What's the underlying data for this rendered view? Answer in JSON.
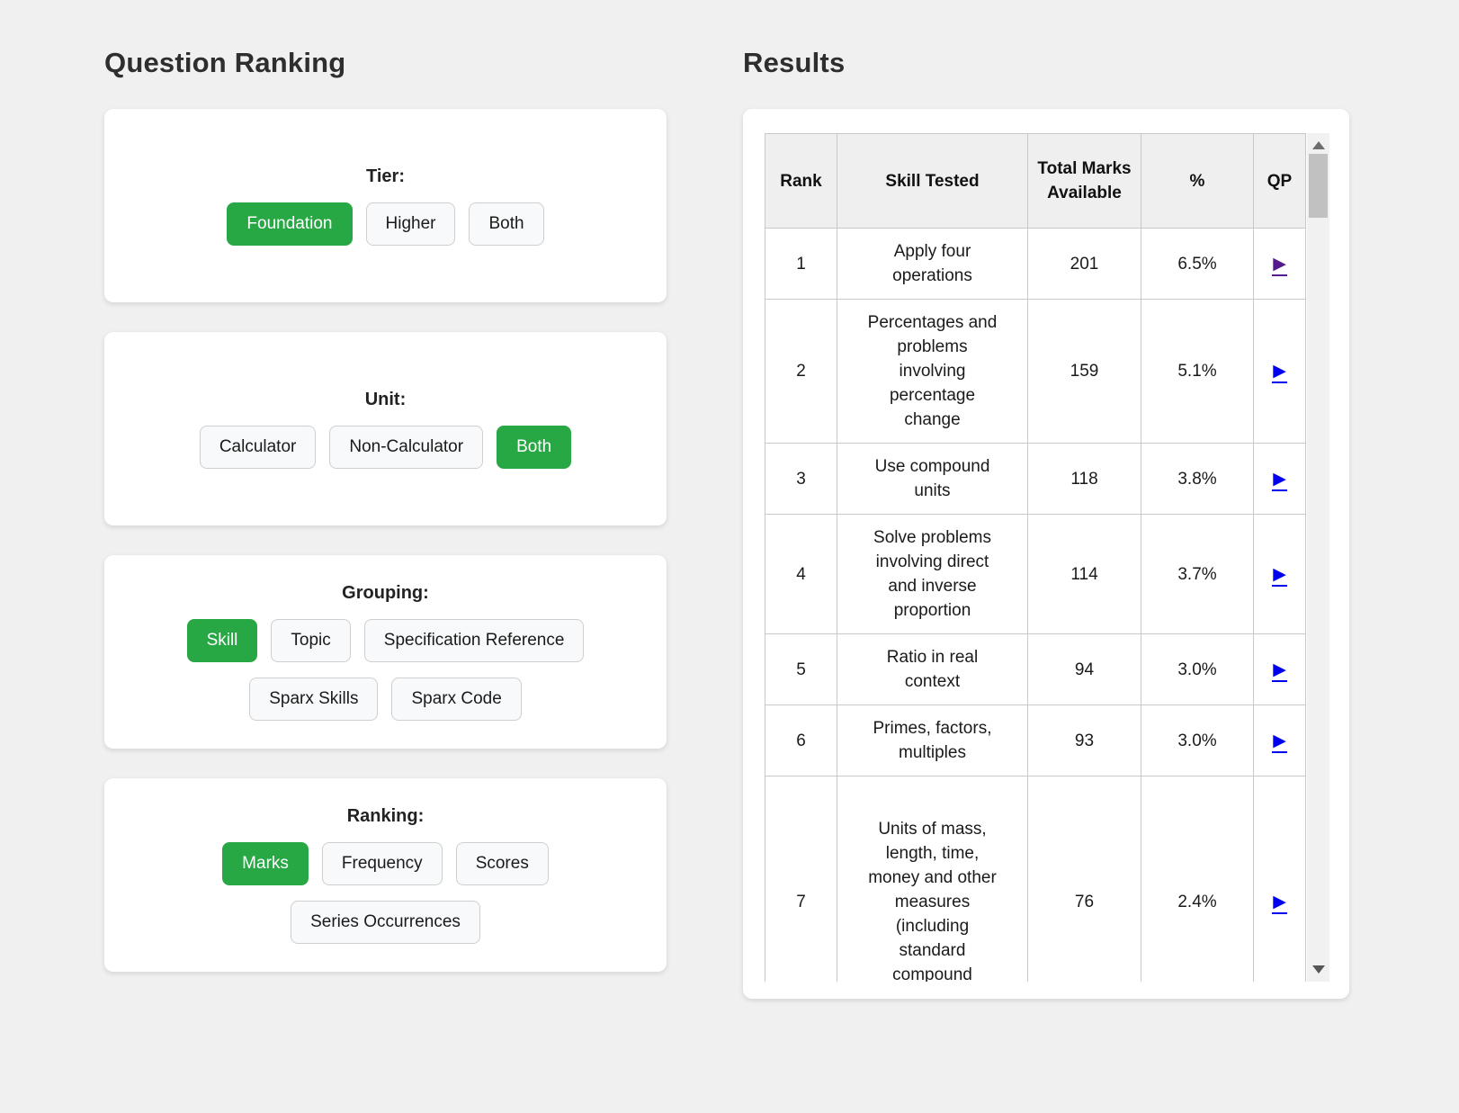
{
  "left_panel": {
    "title": "Question Ranking",
    "groups": [
      {
        "id": "tier",
        "label": "Tier:",
        "rows": [
          [
            {
              "label": "Foundation",
              "active": true
            },
            {
              "label": "Higher",
              "active": false
            },
            {
              "label": "Both",
              "active": false
            }
          ]
        ]
      },
      {
        "id": "unit",
        "label": "Unit:",
        "rows": [
          [
            {
              "label": "Calculator",
              "active": false
            },
            {
              "label": "Non-Calculator",
              "active": false
            },
            {
              "label": "Both",
              "active": true
            }
          ]
        ]
      },
      {
        "id": "grouping",
        "label": "Grouping:",
        "rows": [
          [
            {
              "label": "Skill",
              "active": true
            },
            {
              "label": "Topic",
              "active": false
            },
            {
              "label": "Specification Reference",
              "active": false
            }
          ],
          [
            {
              "label": "Sparx Skills",
              "active": false
            },
            {
              "label": "Sparx Code",
              "active": false
            }
          ]
        ]
      },
      {
        "id": "ranking",
        "label": "Ranking:",
        "rows": [
          [
            {
              "label": "Marks",
              "active": true
            },
            {
              "label": "Frequency",
              "active": false
            },
            {
              "label": "Scores",
              "active": false
            }
          ],
          [
            {
              "label": "Series Occurrences",
              "active": false
            }
          ]
        ]
      }
    ]
  },
  "results": {
    "title": "Results",
    "columns": [
      "Rank",
      "Skill Tested",
      "Total Marks Available",
      "%",
      "QP"
    ],
    "qp_icon": "▶",
    "rows": [
      {
        "rank": "1",
        "skill": "Apply four operations",
        "marks": "201",
        "percent": "6.5%",
        "visited": true
      },
      {
        "rank": "2",
        "skill": "Percentages and problems involving percentage change",
        "marks": "159",
        "percent": "5.1%",
        "visited": false
      },
      {
        "rank": "3",
        "skill": "Use compound units",
        "marks": "118",
        "percent": "3.8%",
        "visited": false
      },
      {
        "rank": "4",
        "skill": "Solve problems involving direct and inverse proportion",
        "marks": "114",
        "percent": "3.7%",
        "visited": false
      },
      {
        "rank": "5",
        "skill": "Ratio in real context",
        "marks": "94",
        "percent": "3.0%",
        "visited": false
      },
      {
        "rank": "6",
        "skill": "Primes, factors, multiples",
        "marks": "93",
        "percent": "3.0%",
        "visited": false
      },
      {
        "rank": "7",
        "skill": "Units of mass, length, time, money and other measures (including standard compound",
        "marks": "76",
        "percent": "2.4%",
        "visited": false
      }
    ],
    "colors": {
      "active_green": "#28a745",
      "link_blue": "#0000EE",
      "link_visited": "#551A8B"
    }
  }
}
